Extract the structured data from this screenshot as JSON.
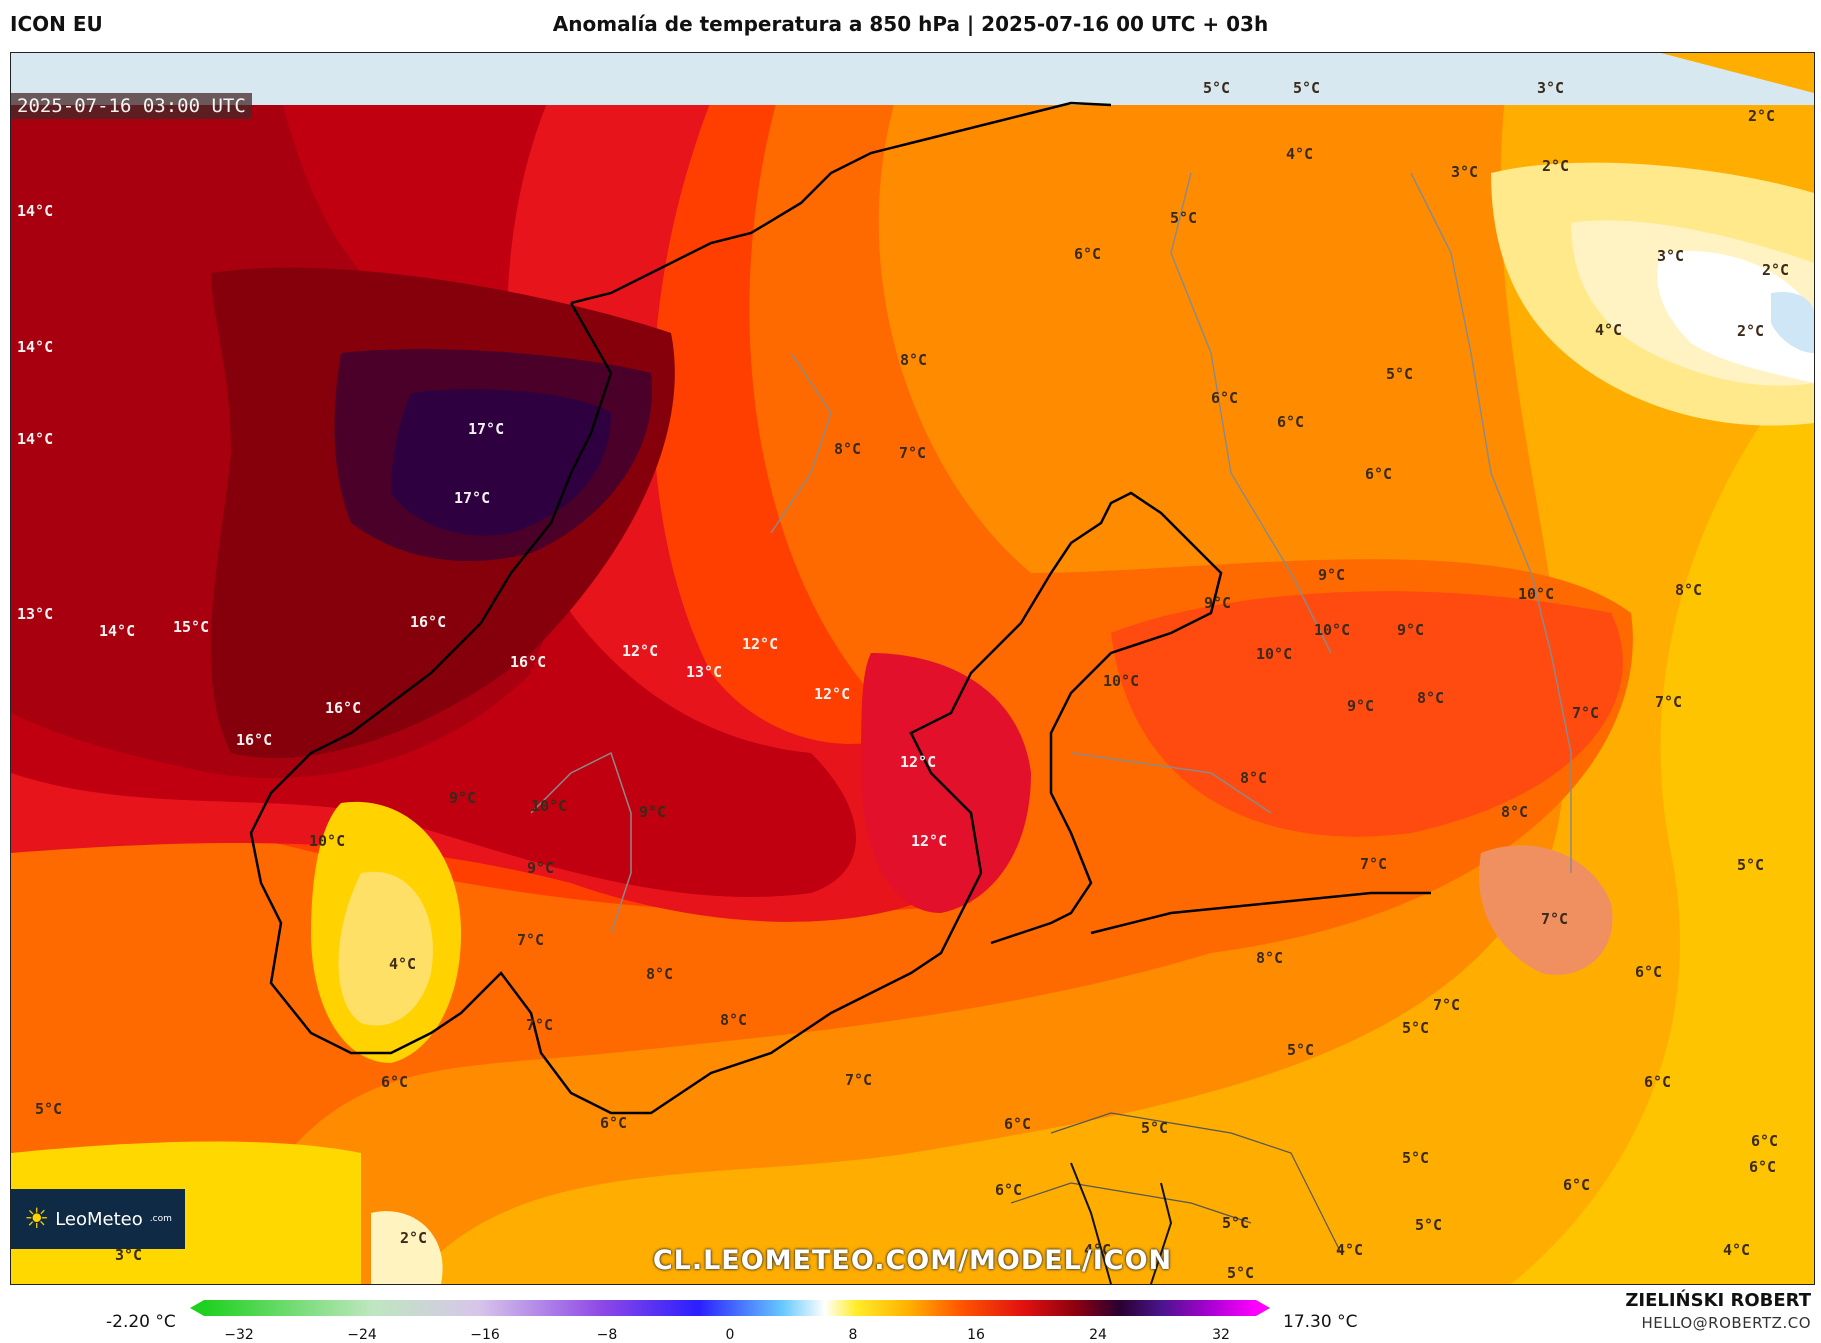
{
  "header": {
    "model": "ICON EU",
    "title": "Anomalía de temperatura a 850 hPa | 2025-07-16 00 UTC + 03h"
  },
  "map": {
    "timestamp": "2025-07-16 03:00 UTC",
    "labels": [
      "14°C",
      "14°C",
      "14°C",
      "13°C",
      "14°C",
      "15°C",
      "17°C",
      "17°C",
      "16°C",
      "16°C",
      "16°C",
      "16°C",
      "12°C",
      "13°C",
      "12°C",
      "12°C",
      "12°C",
      "12°C",
      "9°C",
      "10°C",
      "9°C",
      "10°C",
      "9°C",
      "4°C",
      "7°C",
      "7°C",
      "8°C",
      "8°C",
      "6°C",
      "5°C",
      "6°C",
      "7°C",
      "8°C",
      "8°C",
      "7°C",
      "6°C",
      "5°C",
      "4°C",
      "5°C",
      "5°C",
      "3°C",
      "2°C",
      "3°C",
      "2°C",
      "3°C",
      "2°C",
      "2°C",
      "4°C",
      "5°C",
      "6°C",
      "6°C",
      "6°C",
      "10°C",
      "9°C",
      "9°C",
      "10°C",
      "10°C",
      "10°C",
      "9°C",
      "9°C",
      "8°C",
      "8°C",
      "8°C",
      "7°C",
      "7°C",
      "8°C",
      "5°C",
      "7°C",
      "7°C",
      "6°C",
      "5°C",
      "5°C",
      "5°C",
      "6°C",
      "6°C",
      "6°C",
      "5°C",
      "4°C",
      "3°C",
      "2°C",
      "7°C",
      "6°C",
      "6°C",
      "8°C",
      "5°C",
      "5°C",
      "4°C",
      "4°C",
      "5°C",
      "6°C"
    ],
    "website": "CL.LEOMETEO.COM/MODEL/ICON",
    "logo_text": "LeoMeteo",
    "logo_suffix": ".com"
  },
  "colorbar": {
    "min_label": "-2.20 °C",
    "max_label": "17.30 °C",
    "ticks": [
      "−32",
      "−24",
      "−16",
      "−8",
      "0",
      "8",
      "16",
      "24",
      "32"
    ]
  },
  "credits": {
    "author": "ZIELIŃSKI ROBERT",
    "email": "HELLO@ROBERTZ.CO"
  }
}
